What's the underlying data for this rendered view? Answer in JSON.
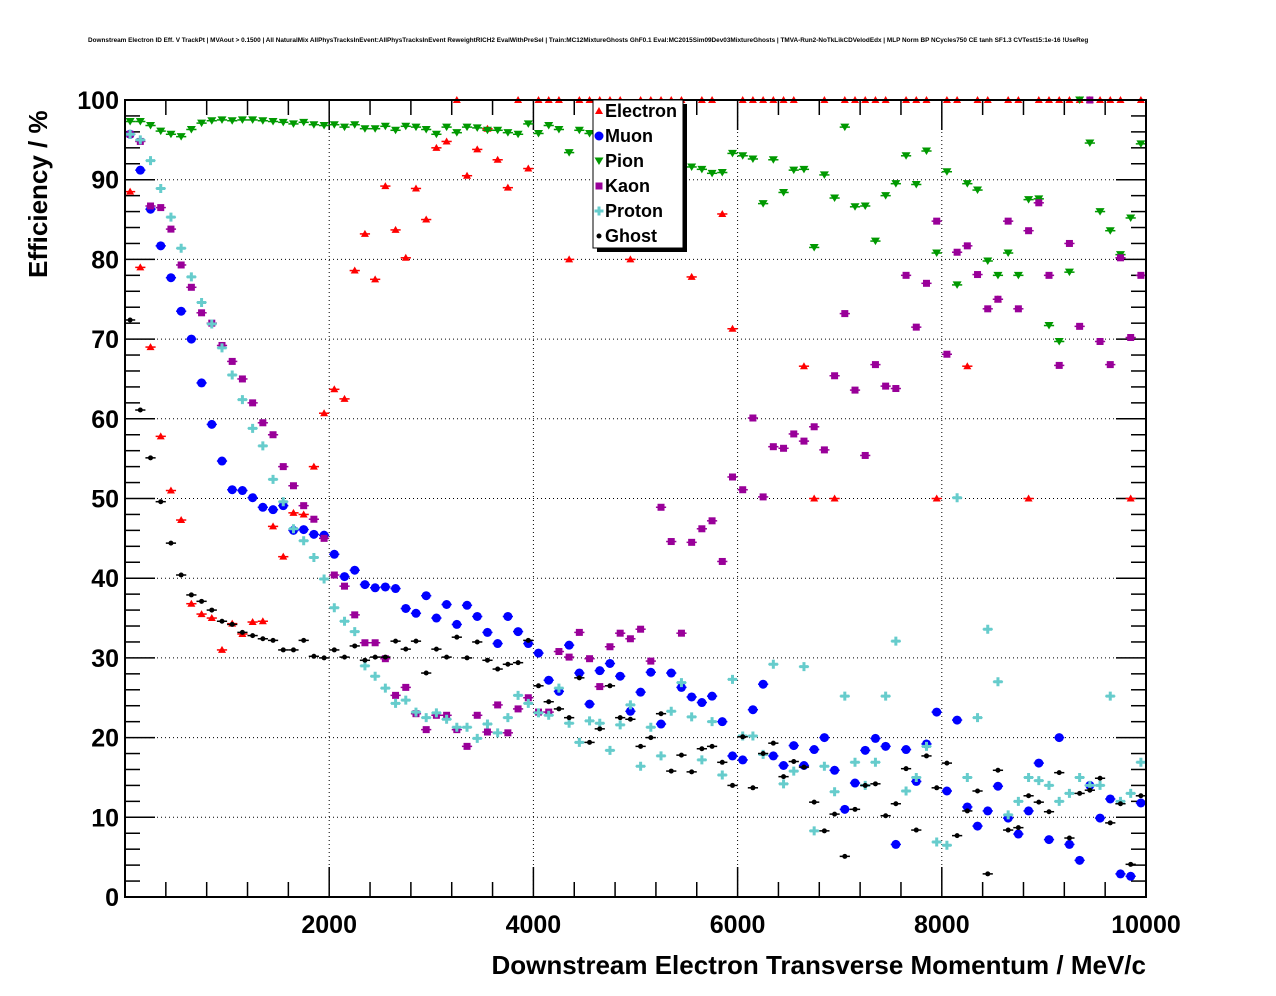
{
  "chart_data": {
    "type": "scatter",
    "title": "Downstream Electron ID Eff. V TrackPt | MVAout > 0.1500 | All NaturalMix AllPhysTracksInEvent:AllPhysTracksInEvent ReweightRICH2 EvalWithPreSel | Train:MC12MixtureGhosts GhF0.1 Eval:MC2015Sim09Dev03MixtureGhosts | TMVA-Run2-NoTkLikCDVelodEdx | MLP Norm BP NCycles750 CE tanh SF1.3 CVTest15:1e-16 !UseReg",
    "xlabel": "Downstream Electron Transverse Momentum / MeV/c",
    "ylabel": "Efficiency / %",
    "xlim": [
      0,
      10000
    ],
    "ylim": [
      0,
      100
    ],
    "x_ticks": [
      "2000",
      "4000",
      "6000",
      "8000",
      "10000"
    ],
    "y_ticks": [
      "0",
      "10",
      "20",
      "30",
      "40",
      "50",
      "60",
      "70",
      "80",
      "90",
      "100"
    ],
    "grid": true,
    "legend_position": "top-center",
    "bin_width": 100,
    "x_first_bin_center": 50,
    "series": [
      {
        "name": "Electron",
        "color": "#ff0000",
        "marker": "triangle-up",
        "values": [
          88.5,
          79,
          69,
          57.8,
          51,
          47.3,
          36.8,
          35.5,
          35,
          31,
          34.3,
          33,
          34.5,
          34.6,
          46.5,
          42.7,
          48.2,
          48,
          54,
          60.7,
          63.7,
          62.5,
          78.6,
          83.2,
          77.5,
          89.2,
          83.7,
          80.2,
          88.9,
          85,
          94,
          94.8,
          100,
          90.5,
          93.8,
          96.4,
          92.5,
          89,
          100,
          91.4,
          100,
          100,
          100,
          80,
          100,
          100,
          100,
          100,
          100,
          80,
          100,
          100,
          100,
          100,
          100,
          77.8,
          100,
          100,
          85.7,
          71.3,
          100,
          100,
          100,
          100,
          100,
          100,
          66.6,
          50,
          100,
          50,
          100,
          100,
          100,
          100,
          100,
          null,
          100,
          100,
          100,
          50,
          100,
          100,
          66.6,
          100,
          100,
          75,
          100,
          100,
          50,
          100,
          100,
          100,
          100,
          100,
          100,
          100,
          100,
          100,
          50,
          100
        ]
      },
      {
        "name": "Muon",
        "color": "#0000ff",
        "marker": "circle",
        "values": [
          95.7,
          91.2,
          86.3,
          81.7,
          77.7,
          73.5,
          70,
          64.5,
          59.3,
          54.7,
          51.1,
          51,
          50.1,
          48.9,
          48.6,
          49.1,
          46,
          46.1,
          45.5,
          45.4,
          43,
          40.2,
          41,
          39.2,
          38.8,
          38.9,
          38.7,
          36.2,
          35.6,
          37.8,
          35,
          36.7,
          34.2,
          36.6,
          35.2,
          33.2,
          31.8,
          35.2,
          33.3,
          31.8,
          30.6,
          27.2,
          25.8,
          31.6,
          28.1,
          24.2,
          28.4,
          29.3,
          27.7,
          23.3,
          25.7,
          28.2,
          21.7,
          28.1,
          26.3,
          25.1,
          24.4,
          25.2,
          22,
          17.7,
          17.2,
          23.5,
          26.7,
          17.7,
          16.5,
          19,
          16.5,
          18.5,
          20,
          15.9,
          11,
          14.3,
          18.4,
          19.9,
          18.9,
          6.6,
          18.5,
          14.5,
          19.2,
          23.2,
          13.3,
          22.2,
          11.3,
          8.9,
          10.8,
          13.9,
          9.9,
          7.9,
          10.8,
          16.8,
          7.2,
          20,
          6.6,
          4.6,
          14,
          9.9,
          12.3,
          2.9,
          2.6,
          11.8
        ]
      },
      {
        "name": "Pion",
        "color": "#009900",
        "marker": "triangle-down",
        "values": [
          97.3,
          97.3,
          96.8,
          96.1,
          95.7,
          95.4,
          96.3,
          97.1,
          97.4,
          97.5,
          97.4,
          97.5,
          97.5,
          97.4,
          97.3,
          97.2,
          97,
          97.2,
          96.9,
          96.8,
          96.9,
          96.6,
          96.9,
          96.4,
          96.4,
          96.7,
          96.2,
          96.7,
          96.6,
          96.3,
          95.7,
          96.6,
          95.9,
          96.6,
          96.5,
          96.2,
          96.2,
          95.9,
          95.7,
          97,
          95.8,
          96.8,
          96.3,
          93.4,
          96.2,
          95.8,
          95.2,
          96.3,
          91.8,
          94.7,
          91,
          92.8,
          91.8,
          93.2,
          89.2,
          91.6,
          91.3,
          90.8,
          90.9,
          93.3,
          93,
          92.6,
          87,
          92.5,
          88.4,
          91.2,
          91.3,
          81.5,
          90.6,
          87.7,
          96.6,
          86.6,
          86.7,
          82.3,
          88,
          89.5,
          93,
          89.4,
          93.6,
          80.8,
          91,
          76.8,
          89.5,
          88.7,
          79.8,
          78,
          80.8,
          78,
          87.5,
          87.6,
          71.7,
          69.7,
          78.4,
          100,
          94.6,
          86,
          83.6,
          80.6,
          85.2,
          94.5
        ]
      },
      {
        "name": "Kaon",
        "color": "#990099",
        "marker": "square",
        "values": [
          95.7,
          94.8,
          86.7,
          86.5,
          83.8,
          79.3,
          76.5,
          73.3,
          72,
          69.2,
          67.2,
          65,
          62,
          59.5,
          58,
          54,
          51.6,
          49.1,
          47.4,
          45,
          40.4,
          39,
          35.4,
          31.9,
          31.9,
          29.9,
          25.3,
          26.3,
          23,
          21,
          22.8,
          22.8,
          21,
          18.9,
          22.8,
          20.7,
          24.1,
          20.6,
          23.6,
          25,
          23.2,
          23.2,
          30.8,
          30.1,
          33.2,
          29.9,
          26.4,
          31.4,
          33.1,
          32.4,
          33.6,
          29.6,
          48.9,
          44.6,
          33.1,
          44.5,
          46.2,
          47.2,
          42.1,
          52.7,
          51.1,
          60.1,
          50.2,
          56.5,
          56.3,
          58.1,
          57.2,
          59,
          56.1,
          65.4,
          73.2,
          63.6,
          55.4,
          66.8,
          64.1,
          63.8,
          78,
          71.5,
          77,
          84.8,
          68.1,
          80.9,
          81.7,
          78.1,
          73.8,
          75,
          84.8,
          73.8,
          83.6,
          87.1,
          78,
          66.7,
          82,
          71.6,
          100,
          69.7,
          66.8,
          80.2,
          70.2,
          78
        ]
      },
      {
        "name": "Proton",
        "color": "#66cccc",
        "marker": "cross",
        "values": [
          95.7,
          95,
          92.4,
          88.9,
          85.3,
          81.4,
          77.8,
          74.6,
          71.9,
          68.9,
          65.5,
          62.4,
          58.8,
          56.6,
          52.4,
          49.6,
          46.2,
          44.7,
          42.6,
          39.9,
          36.3,
          34.6,
          33.3,
          29,
          27.7,
          26.2,
          24.3,
          24.7,
          23.2,
          22.5,
          23.1,
          22.3,
          21.3,
          21.3,
          19.9,
          21.7,
          20.6,
          22.5,
          25.3,
          24.3,
          23.1,
          22.8,
          26.2,
          21.8,
          19.4,
          22.1,
          21.8,
          18.4,
          21.6,
          24.1,
          16.4,
          21.3,
          17.7,
          23.3,
          26.9,
          22.6,
          17.2,
          22,
          15.3,
          27.3,
          20.2,
          20.2,
          17.9,
          29.2,
          14.2,
          15.8,
          28.9,
          8.3,
          16.4,
          13.2,
          25.2,
          16.9,
          14,
          16.9,
          25.2,
          32.1,
          13.3,
          15,
          18.9,
          6.9,
          6.5,
          50.1,
          15,
          22.5,
          33.6,
          27,
          10.3,
          12,
          15,
          14.6,
          14,
          12,
          13,
          15,
          14,
          14,
          25.2,
          12,
          13,
          16.9
        ]
      },
      {
        "name": "Ghost",
        "color": "#000000",
        "marker": "diamond",
        "values": [
          72.4,
          61.1,
          55.1,
          49.6,
          44.4,
          40.4,
          37.9,
          37.1,
          36,
          34.6,
          34.2,
          33.2,
          32.8,
          32.4,
          32.2,
          31,
          31,
          32.2,
          30.2,
          30,
          31,
          30.1,
          31.5,
          29.7,
          30.1,
          30.1,
          32.1,
          31.1,
          32.1,
          28.1,
          31.1,
          30.1,
          32.6,
          30,
          32,
          29.7,
          28.6,
          29.2,
          29.4,
          32.2,
          26.5,
          24.5,
          23.6,
          22.5,
          27.5,
          19.4,
          21.1,
          26.5,
          22.5,
          22.3,
          18.9,
          20,
          23,
          15.8,
          17.8,
          15.7,
          18.6,
          18.9,
          16.9,
          14,
          20.1,
          13.7,
          18,
          19.3,
          15.1,
          17,
          16.3,
          11.9,
          8.3,
          10.4,
          5.1,
          11,
          14,
          14.2,
          10.2,
          11.7,
          16.1,
          8.4,
          17.7,
          13.7,
          16.8,
          7.7,
          10.8,
          13.3,
          2.9,
          15.9,
          8.4,
          8.7,
          12.7,
          11.9,
          10.7,
          15.6,
          7.4,
          13,
          13.4,
          14.9,
          9.3,
          11.7,
          4.1,
          12.7
        ]
      }
    ]
  }
}
